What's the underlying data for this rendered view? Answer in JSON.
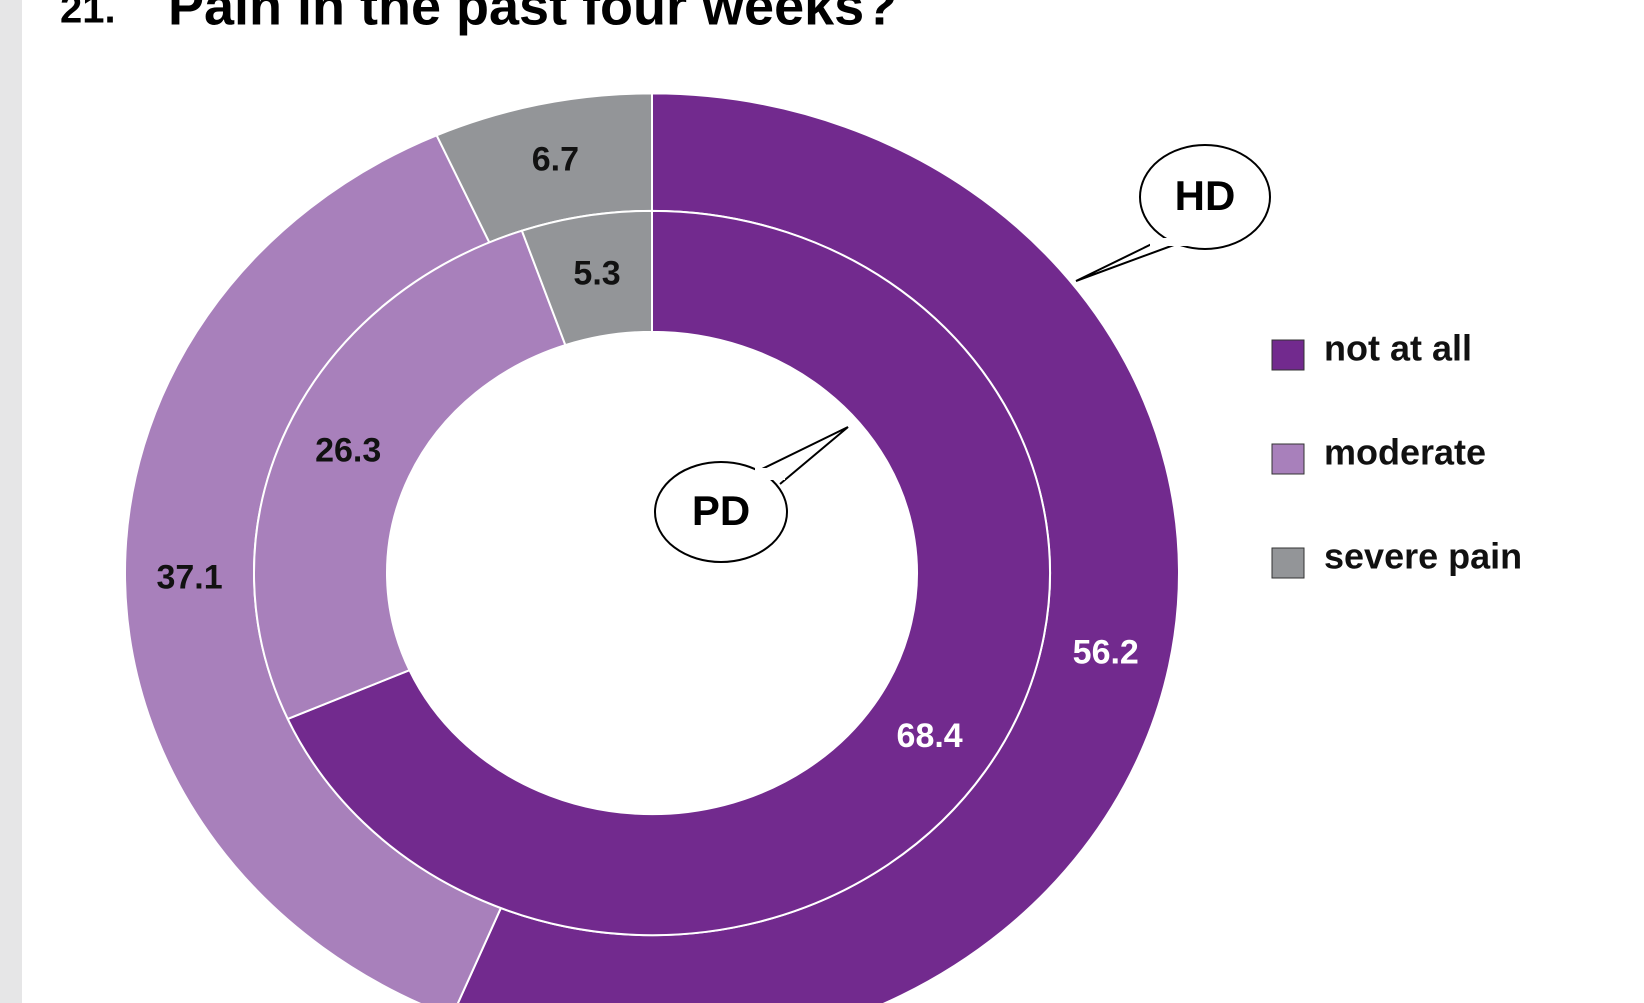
{
  "chart_data": {
    "type": "donut",
    "number": "21.",
    "title": "Pain in the past four weeks?",
    "categories": [
      "not at all",
      "moderate",
      "severe pain"
    ],
    "colors": [
      "#722a8e",
      "#a880bb",
      "#939598"
    ],
    "series": [
      {
        "name": "HD",
        "values": [
          56.2,
          37.1,
          6.7
        ]
      },
      {
        "name": "PD",
        "values": [
          68.4,
          26.3,
          5.3
        ]
      }
    ],
    "legend": "right"
  }
}
